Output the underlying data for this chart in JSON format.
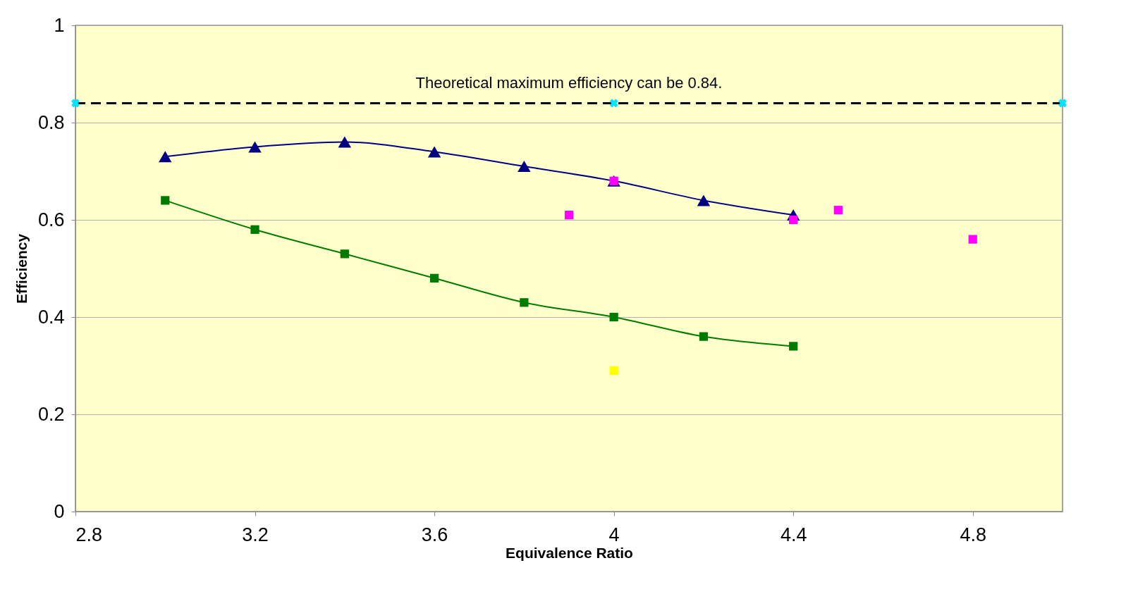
{
  "chart_data": {
    "type": "scatter",
    "xlabel": "Equivalence Ratio",
    "ylabel": "Efficiency",
    "xlim": [
      2.8,
      5.0
    ],
    "xticks": [
      2.8,
      3.2,
      3.6,
      4,
      4.4,
      4.8
    ],
    "ylim": [
      0,
      1
    ],
    "yticks": [
      0,
      0.2,
      0.4,
      0.6,
      0.8,
      1
    ],
    "grid": "y",
    "series": [
      {
        "type": "line",
        "line_style": "solid",
        "marker": "triangle",
        "color": "#000080",
        "x": [
          3.0,
          3.2,
          3.4,
          3.6,
          3.8,
          4.0,
          4.2,
          4.4
        ],
        "values": [
          0.73,
          0.75,
          0.76,
          0.74,
          0.71,
          0.68,
          0.64,
          0.61
        ]
      },
      {
        "type": "line",
        "line_style": "solid",
        "marker": "square",
        "color": "#007a00",
        "x": [
          3.0,
          3.2,
          3.4,
          3.6,
          3.8,
          4.0,
          4.2,
          4.4
        ],
        "values": [
          0.64,
          0.58,
          0.53,
          0.48,
          0.43,
          0.4,
          0.36,
          0.34
        ]
      },
      {
        "marker": "square",
        "color": "#ff00ff",
        "x": [
          3.9,
          4.0,
          4.4,
          4.5,
          4.8
        ],
        "values": [
          0.61,
          0.68,
          0.6,
          0.62,
          0.56
        ]
      },
      {
        "marker": "square",
        "color": "#ffff00",
        "x": [
          4.0
        ],
        "values": [
          0.29
        ]
      },
      {
        "marker": "cross",
        "color": "#00e5ff",
        "x": [
          2.8,
          4.0,
          5.0
        ],
        "values": [
          0.84,
          0.84,
          0.84
        ]
      }
    ],
    "ref_lines": [
      {
        "axis": "y",
        "value": 0.84,
        "label": "Theoretical maximum efficiency can be 0.84.",
        "color": "#000000",
        "line_style": "dashed"
      }
    ]
  }
}
